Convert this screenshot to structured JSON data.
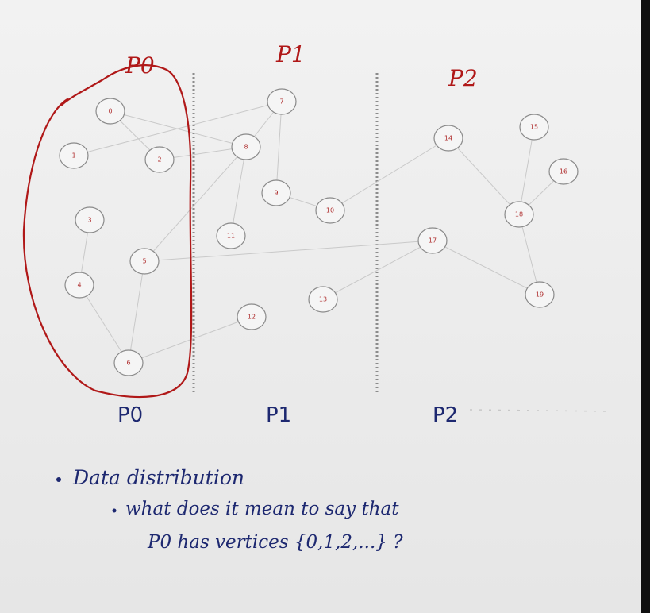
{
  "diagram": {
    "nodes": [
      {
        "id": "0"
      },
      {
        "id": "1"
      },
      {
        "id": "2"
      },
      {
        "id": "3"
      },
      {
        "id": "4"
      },
      {
        "id": "5"
      },
      {
        "id": "6"
      },
      {
        "id": "7"
      },
      {
        "id": "8"
      },
      {
        "id": "9"
      },
      {
        "id": "10"
      },
      {
        "id": "11"
      },
      {
        "id": "12"
      },
      {
        "id": "13"
      },
      {
        "id": "14"
      },
      {
        "id": "15"
      },
      {
        "id": "16"
      },
      {
        "id": "17"
      },
      {
        "id": "18"
      },
      {
        "id": "19"
      }
    ],
    "edges": [
      [
        "0",
        "2"
      ],
      [
        "0",
        "8"
      ],
      [
        "1",
        "7"
      ],
      [
        "2",
        "8"
      ],
      [
        "3",
        "4"
      ],
      [
        "4",
        "6"
      ],
      [
        "5",
        "6"
      ],
      [
        "5",
        "8"
      ],
      [
        "5",
        "17"
      ],
      [
        "6",
        "12"
      ],
      [
        "7",
        "8"
      ],
      [
        "7",
        "9"
      ],
      [
        "8",
        "11"
      ],
      [
        "9",
        "10"
      ],
      [
        "10",
        "14"
      ],
      [
        "13",
        "17"
      ],
      [
        "14",
        "18"
      ],
      [
        "15",
        "18"
      ],
      [
        "16",
        "18"
      ],
      [
        "17",
        "19"
      ],
      [
        "18",
        "19"
      ]
    ],
    "partitions_bottom": [
      "P0",
      "P1",
      "P2"
    ]
  },
  "annotations": {
    "top_labels": [
      "P0",
      "P1",
      "P2"
    ],
    "ink_red": "#b01818",
    "ink_blue": "#1d2870"
  },
  "notes": {
    "bullet_1": "Data distribution",
    "bullet_2": "what does it mean to say that",
    "bullet_2_cont": "P0 has vertices {0,1,2,...} ?"
  }
}
